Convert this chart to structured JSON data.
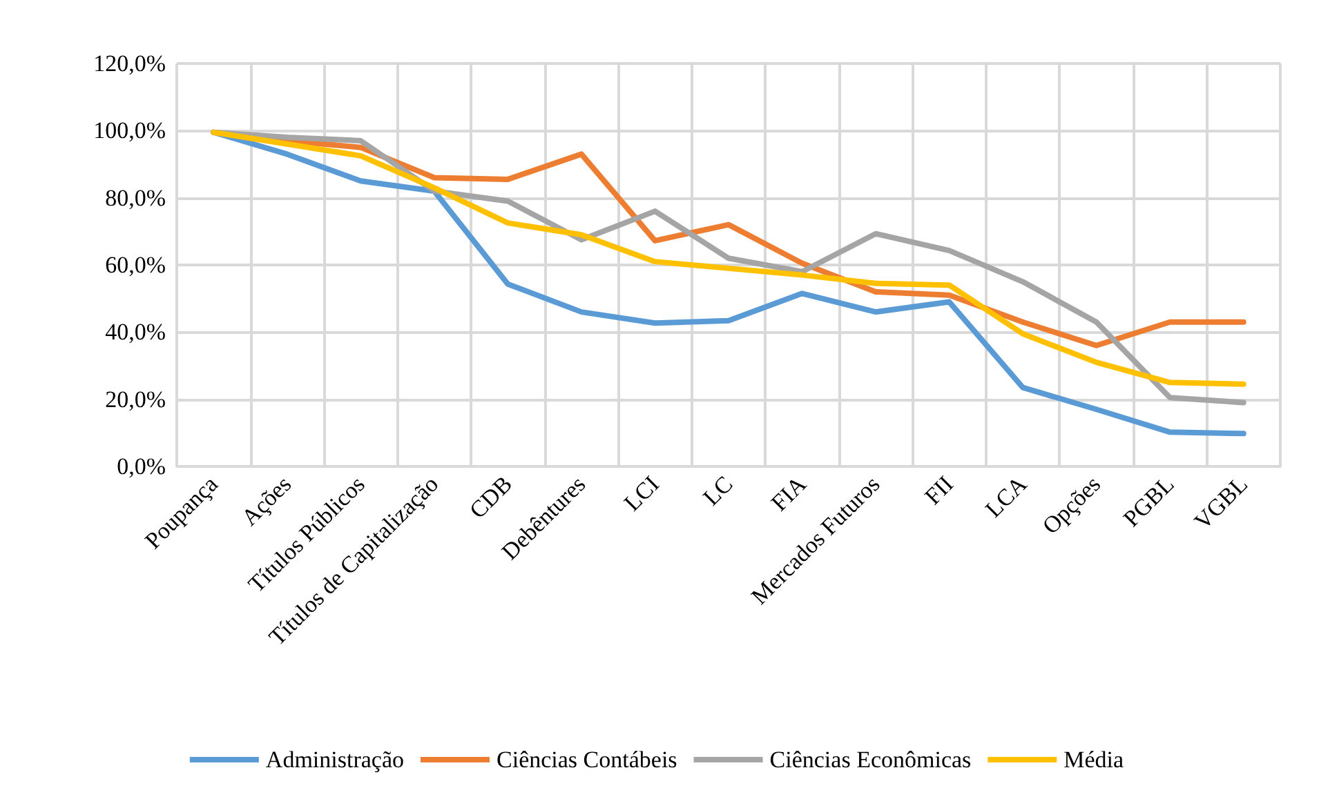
{
  "chart_data": {
    "type": "line",
    "categories": [
      "Poupança",
      "Ações",
      "Títulos Públicos",
      "Títulos de Capitalização",
      "CDB",
      "Debêntures",
      "LCI",
      "LC",
      "FIA",
      "Mercados Futuros",
      "FII",
      "LCA",
      "Opções",
      "PGBL",
      "VGBL"
    ],
    "series": [
      {
        "name": "Administração",
        "color": "#5b9bd5",
        "values": [
          99.5,
          93,
          85,
          82,
          54.3,
          46,
          42.7,
          43.4,
          51.5,
          46,
          49,
          23.5,
          17,
          10.2,
          9.8
        ]
      },
      {
        "name": "Ciências Contábeis",
        "color": "#ed7d31",
        "values": [
          99.5,
          97,
          95,
          86,
          85.5,
          93,
          67.2,
          72,
          60.5,
          52,
          51,
          43,
          36,
          43,
          43
        ]
      },
      {
        "name": "Ciências Econômicas",
        "color": "#a5a5a5",
        "values": [
          99.5,
          98,
          97,
          82,
          79,
          67.5,
          76,
          62,
          58,
          69.3,
          64.3,
          55,
          43,
          20.5,
          19
        ]
      },
      {
        "name": "Média",
        "color": "#ffc000",
        "values": [
          99.5,
          96,
          92.5,
          83,
          72.5,
          69,
          61,
          59,
          57,
          54.5,
          54,
          39.5,
          31,
          25,
          24.5
        ]
      }
    ],
    "ylim": [
      0,
      120
    ],
    "yticks": [
      {
        "value": 0,
        "label": "0,0%"
      },
      {
        "value": 20,
        "label": "20,0%"
      },
      {
        "value": 40,
        "label": "40,0%"
      },
      {
        "value": 60,
        "label": "60,0%"
      },
      {
        "value": 80,
        "label": "80,0%"
      },
      {
        "value": 100,
        "label": "100,0%"
      },
      {
        "value": 120,
        "label": "120,0%"
      }
    ],
    "grid": true,
    "legend": "bottom",
    "marker": "none",
    "line_style": "solid"
  }
}
